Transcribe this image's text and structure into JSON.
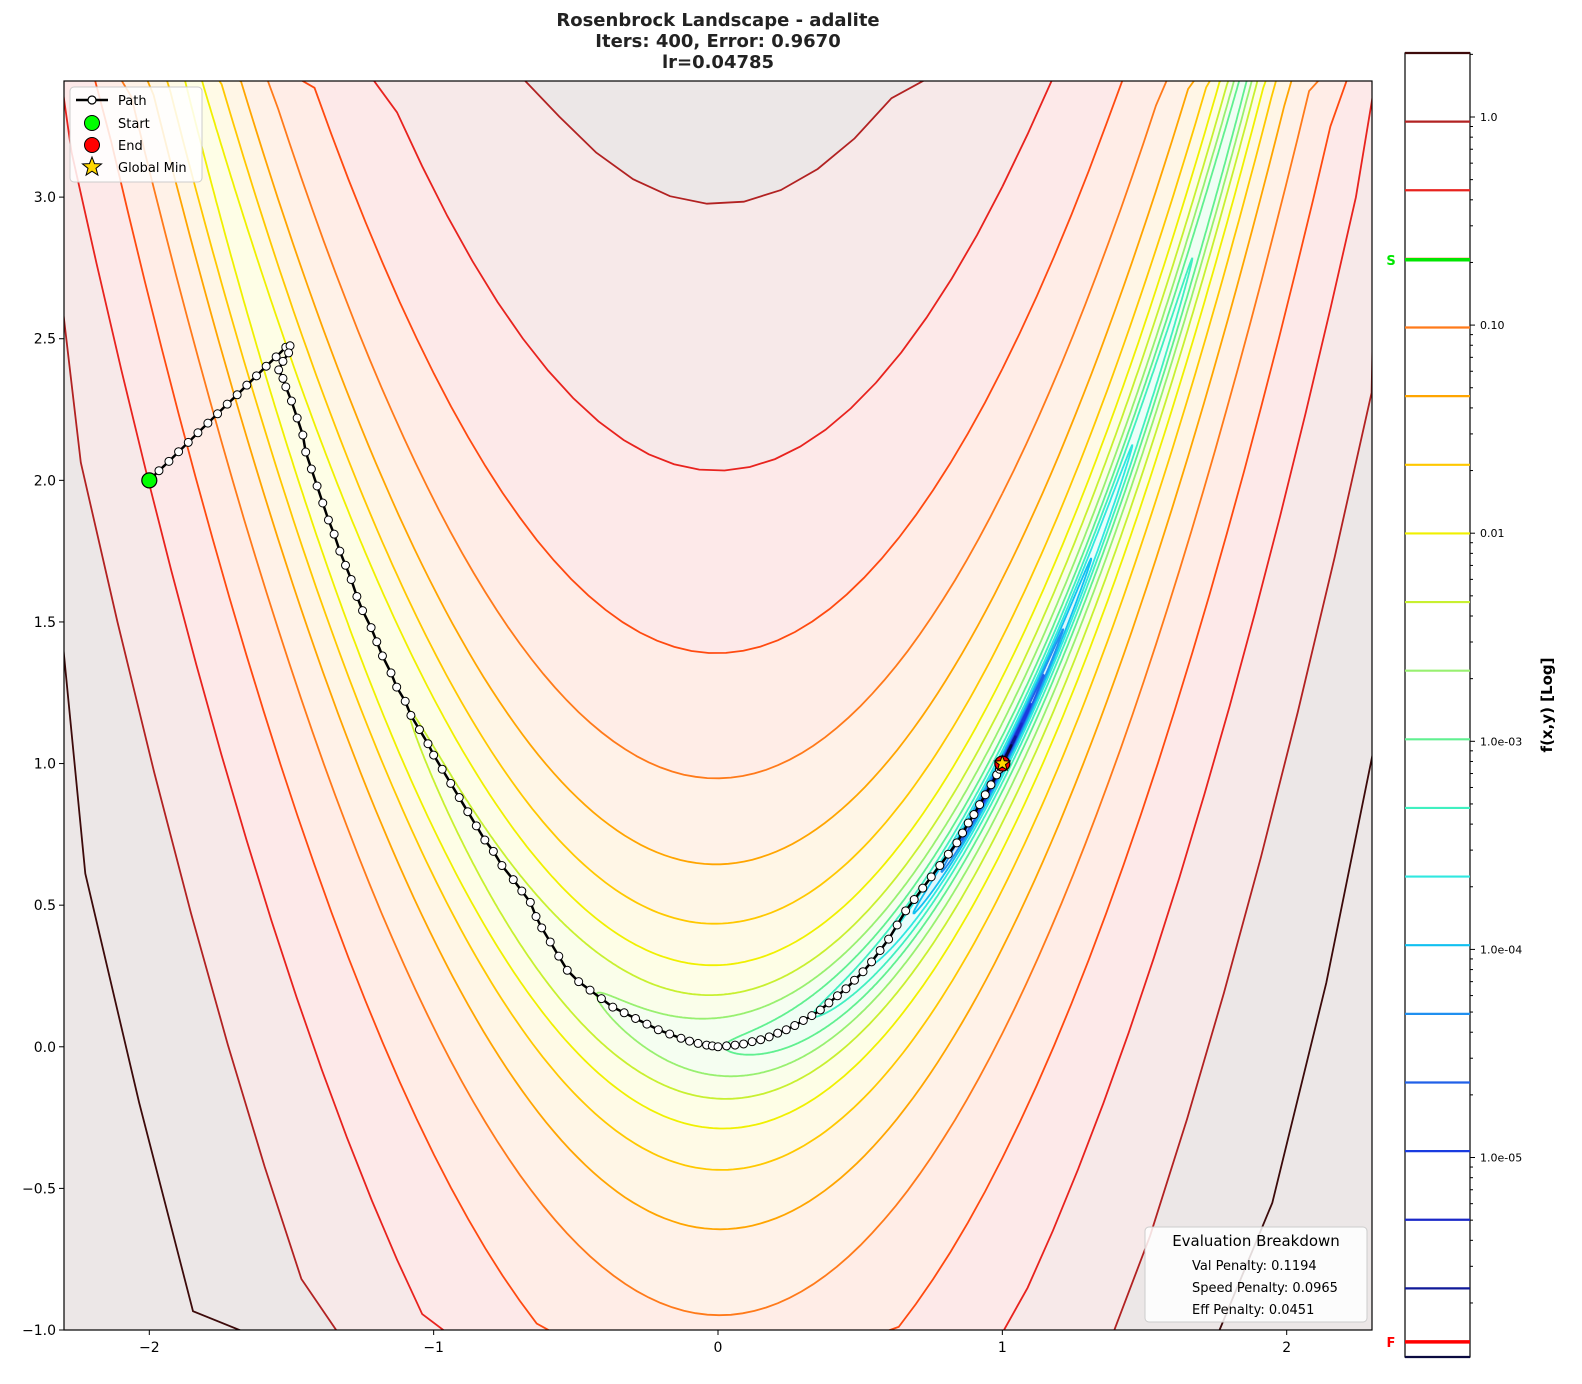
{
  "title": {
    "line1": "Rosenbrock Landscape - adalite",
    "line2": "Iters: 400, Error: 0.9670",
    "line3": "lr=0.04785"
  },
  "chart_data": {
    "type": "contour",
    "x_ticks": [
      "−2",
      "−1",
      "0",
      "1",
      "2"
    ],
    "x_tick_values": [
      -2,
      -1,
      0,
      1,
      2
    ],
    "y_ticks": [
      "−1.0",
      "−0.5",
      "0.0",
      "0.5",
      "1.0",
      "1.5",
      "2.0",
      "2.5",
      "3.0"
    ],
    "y_tick_values": [
      -1,
      -0.5,
      0,
      0.5,
      1,
      1.5,
      2,
      2.5,
      3
    ],
    "xlim": [
      -2.3,
      2.3
    ],
    "ylim": [
      -1.0,
      3.41
    ],
    "grid": false,
    "contour_levels": 20,
    "level_colors": [
      "#3d0a0a",
      "#b22222",
      "#e8231e",
      "#ff4a10",
      "#ff7a1a",
      "#ffa500",
      "#ffc800",
      "#f0f000",
      "#c8f030",
      "#98f070",
      "#60f090",
      "#40f0c0",
      "#30e8e0",
      "#10c0f0",
      "#2090f0",
      "#2060e8",
      "#1a3ce0",
      "#1a28c8",
      "#101a98",
      "#0a0a40"
    ],
    "path": [
      [
        -2,
        2
      ],
      [
        -1.966,
        2.034
      ],
      [
        -1.931,
        2.067
      ],
      [
        -1.897,
        2.101
      ],
      [
        -1.863,
        2.134
      ],
      [
        -1.829,
        2.168
      ],
      [
        -1.794,
        2.202
      ],
      [
        -1.76,
        2.235
      ],
      [
        -1.726,
        2.269
      ],
      [
        -1.691,
        2.302
      ],
      [
        -1.657,
        2.336
      ],
      [
        -1.623,
        2.369
      ],
      [
        -1.589,
        2.403
      ],
      [
        -1.554,
        2.436
      ],
      [
        -1.52,
        2.47
      ],
      [
        -1.505,
        2.475
      ],
      [
        -1.51,
        2.45
      ],
      [
        -1.53,
        2.42
      ],
      [
        -1.545,
        2.39
      ],
      [
        -1.53,
        2.36
      ],
      [
        -1.52,
        2.33
      ],
      [
        -1.5,
        2.28
      ],
      [
        -1.48,
        2.22
      ],
      [
        -1.46,
        2.16
      ],
      [
        -1.45,
        2.1
      ],
      [
        -1.43,
        2.04
      ],
      [
        -1.41,
        1.98
      ],
      [
        -1.39,
        1.92
      ],
      [
        -1.37,
        1.86
      ],
      [
        -1.35,
        1.81
      ],
      [
        -1.33,
        1.75
      ],
      [
        -1.31,
        1.7
      ],
      [
        -1.29,
        1.65
      ],
      [
        -1.27,
        1.59
      ],
      [
        -1.25,
        1.54
      ],
      [
        -1.22,
        1.48
      ],
      [
        -1.2,
        1.43
      ],
      [
        -1.18,
        1.38
      ],
      [
        -1.15,
        1.32
      ],
      [
        -1.13,
        1.27
      ],
      [
        -1.1,
        1.22
      ],
      [
        -1.08,
        1.17
      ],
      [
        -1.05,
        1.12
      ],
      [
        -1.02,
        1.07
      ],
      [
        -1.0,
        1.03
      ],
      [
        -0.97,
        0.98
      ],
      [
        -0.94,
        0.93
      ],
      [
        -0.91,
        0.88
      ],
      [
        -0.88,
        0.83
      ],
      [
        -0.85,
        0.78
      ],
      [
        -0.82,
        0.73
      ],
      [
        -0.79,
        0.69
      ],
      [
        -0.76,
        0.64
      ],
      [
        -0.72,
        0.59
      ],
      [
        -0.69,
        0.55
      ],
      [
        -0.66,
        0.51
      ],
      [
        -0.64,
        0.46
      ],
      [
        -0.62,
        0.42
      ],
      [
        -0.59,
        0.37
      ],
      [
        -0.56,
        0.32
      ],
      [
        -0.53,
        0.27
      ],
      [
        -0.49,
        0.23
      ],
      [
        -0.45,
        0.2
      ],
      [
        -0.41,
        0.17
      ],
      [
        -0.37,
        0.14
      ],
      [
        -0.33,
        0.12
      ],
      [
        -0.29,
        0.1
      ],
      [
        -0.25,
        0.08
      ],
      [
        -0.21,
        0.06
      ],
      [
        -0.17,
        0.045
      ],
      [
        -0.13,
        0.03
      ],
      [
        -0.1,
        0.02
      ],
      [
        -0.07,
        0.012
      ],
      [
        -0.04,
        0.006
      ],
      [
        -0.02,
        0.003
      ],
      [
        0,
        0
      ],
      [
        0.03,
        0.003
      ],
      [
        0.06,
        0.006
      ],
      [
        0.09,
        0.01
      ],
      [
        0.12,
        0.018
      ],
      [
        0.15,
        0.025
      ],
      [
        0.18,
        0.035
      ],
      [
        0.21,
        0.048
      ],
      [
        0.24,
        0.06
      ],
      [
        0.27,
        0.075
      ],
      [
        0.3,
        0.093
      ],
      [
        0.33,
        0.11
      ],
      [
        0.36,
        0.13
      ],
      [
        0.39,
        0.155
      ],
      [
        0.42,
        0.18
      ],
      [
        0.45,
        0.205
      ],
      [
        0.48,
        0.235
      ],
      [
        0.51,
        0.265
      ],
      [
        0.54,
        0.3
      ],
      [
        0.57,
        0.34
      ],
      [
        0.6,
        0.38
      ],
      [
        0.63,
        0.43
      ],
      [
        0.66,
        0.48
      ],
      [
        0.69,
        0.52
      ],
      [
        0.72,
        0.56
      ],
      [
        0.75,
        0.6
      ],
      [
        0.78,
        0.64
      ],
      [
        0.81,
        0.68
      ],
      [
        0.84,
        0.72
      ],
      [
        0.86,
        0.755
      ],
      [
        0.88,
        0.79
      ],
      [
        0.9,
        0.82
      ],
      [
        0.92,
        0.855
      ],
      [
        0.94,
        0.89
      ],
      [
        0.96,
        0.925
      ],
      [
        0.98,
        0.96
      ],
      [
        0.99,
        0.98
      ],
      [
        1.0,
        1.0
      ]
    ],
    "start": [
      -2,
      2
    ],
    "end": [
      1.0,
      1.0
    ],
    "global_min": [
      1,
      1
    ],
    "legend": {
      "placement": "upper-left",
      "entries": [
        "Path",
        "Start",
        "End",
        "Global Min"
      ]
    },
    "colorbar": {
      "label": "f(x,y) [Log]",
      "scale": "log",
      "range": [
        1.1e-06,
        2.03
      ],
      "tick_values": [
        1.0,
        0.1,
        0.01,
        0.001,
        0.0001,
        1e-05
      ],
      "tick_labels": [
        "1.0",
        "0.10",
        "0.01",
        "1.0e-03",
        "1.0e-04",
        "1.0e-05"
      ],
      "start_marker": {
        "label": "S",
        "value": 0.206,
        "color": "#00e600"
      },
      "final_marker": {
        "label": "F",
        "value": 1.3e-06,
        "color": "#ff0000"
      }
    }
  },
  "eval_box": {
    "title": "Evaluation Breakdown",
    "val": "Val Penalty: 0.1194",
    "speed": "Speed Penalty: 0.0965",
    "eff": "Eff Penalty: 0.0451"
  }
}
